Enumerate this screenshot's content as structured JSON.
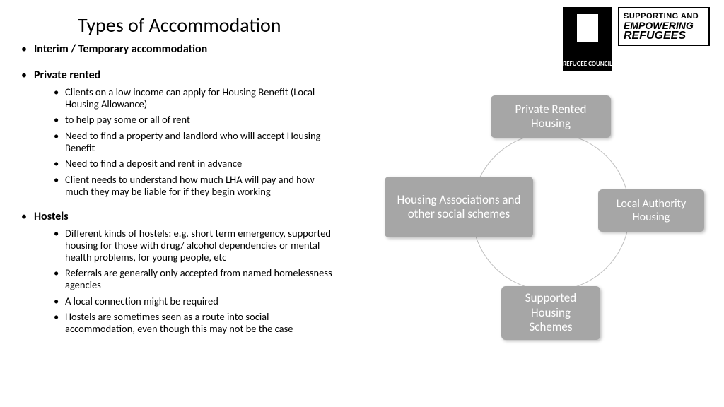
{
  "title": "Types of Accommodation",
  "logos": {
    "refugee_council": "REFUGEE COUNCIL",
    "supporting": {
      "l1": "SUPPORTING AND",
      "l2": "EMPOWERING",
      "l3": "REFUGEES"
    }
  },
  "bullets": {
    "interim": "Interim / Temporary accommodation",
    "private": {
      "head": "Private rented",
      "items": [
        "Clients on a low income can apply for Housing Benefit (Local Housing Allowance)",
        "to help pay some or all of rent",
        "Need to find a property and landlord who will accept Housing Benefit",
        "Need to find a deposit and rent in advance",
        "Client needs to understand how much LHA will pay and how much they may be liable for if they begin working"
      ]
    },
    "hostels": {
      "head": "Hostels",
      "items": [
        "Different kinds of hostels: e.g. short term emergency, supported housing for those with drug/ alcohol dependencies or mental health problems, for young people, etc",
        "Referrals are generally only accepted from named homelessness agencies",
        "A local connection might be required",
        "Hostels are sometimes seen as a route into social accommodation, even though this may not be the case"
      ]
    }
  },
  "diagram": {
    "type": "cycle",
    "node_color": "#a6a6a6",
    "text_color": "#ffffff",
    "circle_border": "#bfbfbf",
    "nodes": {
      "top": "Private Rented Housing",
      "right": "Local Authority Housing",
      "bottom": "Supported Housing Schemes",
      "left": "Housing Associations and other social schemes"
    }
  }
}
